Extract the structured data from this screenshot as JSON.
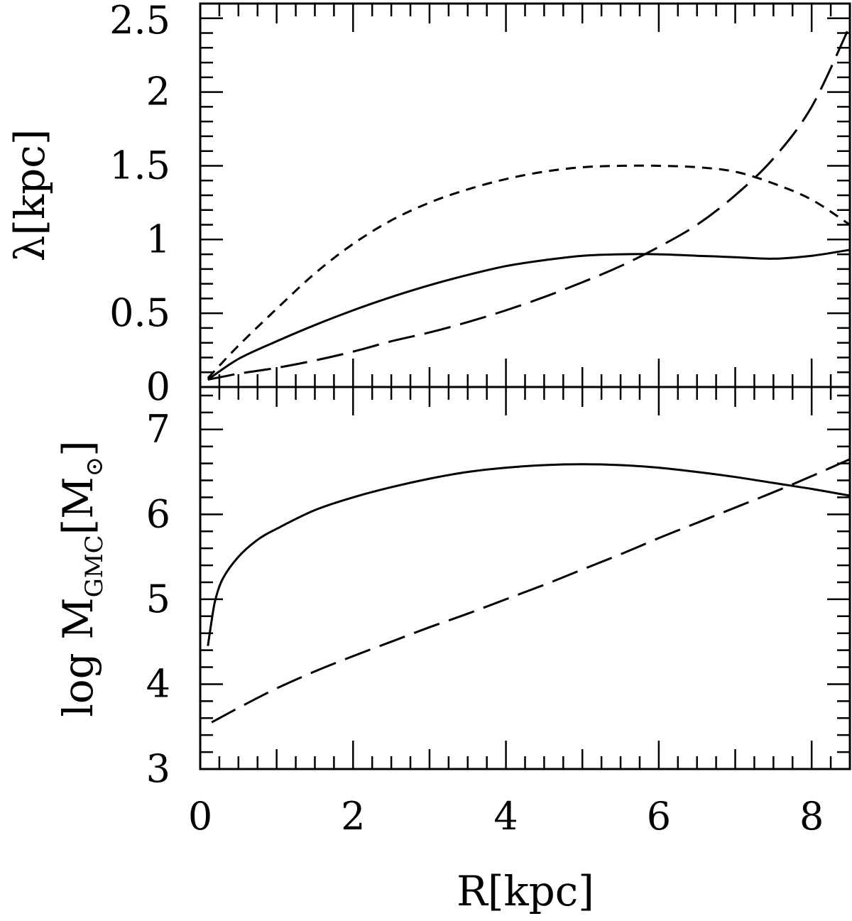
{
  "chart_data": [
    {
      "type": "line",
      "panel": "top",
      "ylabel": "λ[kpc]",
      "xlim": [
        0,
        8.5
      ],
      "ylim": [
        0,
        2.6
      ],
      "y_ticks": [
        0,
        0.5,
        1,
        1.5,
        2,
        2.5
      ],
      "y_tick_labels": [
        "0",
        "0.5",
        "1",
        "1.5",
        "2",
        "2.5"
      ],
      "grid": false,
      "series": [
        {
          "style": "solid",
          "x": [
            0.1,
            0.5,
            1,
            1.5,
            2,
            2.5,
            3,
            3.5,
            4,
            4.5,
            5,
            5.5,
            6,
            6.5,
            7,
            7.5,
            8,
            8.5
          ],
          "y": [
            0.05,
            0.19,
            0.31,
            0.42,
            0.52,
            0.61,
            0.69,
            0.76,
            0.82,
            0.86,
            0.89,
            0.9,
            0.9,
            0.89,
            0.88,
            0.87,
            0.89,
            0.93
          ]
        },
        {
          "style": "short-dash",
          "x": [
            0.1,
            0.5,
            1,
            1.5,
            2,
            2.5,
            3,
            3.5,
            4,
            4.5,
            5,
            5.5,
            6,
            6.5,
            7,
            7.5,
            8,
            8.5
          ],
          "y": [
            0.06,
            0.28,
            0.53,
            0.77,
            0.97,
            1.13,
            1.25,
            1.34,
            1.41,
            1.46,
            1.49,
            1.5,
            1.5,
            1.49,
            1.46,
            1.38,
            1.27,
            1.1
          ]
        },
        {
          "style": "long-dash",
          "x": [
            0.1,
            0.5,
            1,
            1.5,
            2,
            2.5,
            3,
            3.5,
            4,
            4.5,
            5,
            5.5,
            6,
            6.5,
            7,
            7.5,
            8,
            8.5
          ],
          "y": [
            0.05,
            0.09,
            0.13,
            0.18,
            0.24,
            0.31,
            0.37,
            0.44,
            0.52,
            0.61,
            0.71,
            0.82,
            0.95,
            1.1,
            1.3,
            1.55,
            1.9,
            2.45
          ]
        }
      ]
    },
    {
      "type": "line",
      "panel": "bottom",
      "ylabel": "log M",
      "ylabel_subscript": "GMC",
      "ylabel_unit": "[M",
      "ylabel_unit_subscript": "⊙",
      "ylabel_unit_close": "]",
      "xlabel": "R[kpc]",
      "xlim": [
        0,
        8.5
      ],
      "ylim": [
        3,
        7.5
      ],
      "y_ticks": [
        3,
        4,
        5,
        6,
        7
      ],
      "y_tick_labels": [
        "3",
        "4",
        "5",
        "6",
        "7"
      ],
      "x_ticks": [
        0,
        2,
        4,
        6,
        8
      ],
      "x_tick_labels": [
        "0",
        "2",
        "4",
        "6",
        "8"
      ],
      "grid": false,
      "series": [
        {
          "style": "solid",
          "x": [
            0.1,
            0.15,
            0.2,
            0.3,
            0.5,
            0.75,
            1,
            1.5,
            2,
            2.5,
            3,
            3.5,
            4,
            4.5,
            5,
            5.5,
            6,
            6.5,
            7,
            7.5,
            8,
            8.5
          ],
          "y": [
            4.45,
            4.75,
            5.0,
            5.25,
            5.5,
            5.7,
            5.83,
            6.05,
            6.2,
            6.32,
            6.42,
            6.5,
            6.55,
            6.58,
            6.59,
            6.58,
            6.55,
            6.5,
            6.44,
            6.37,
            6.3,
            6.22
          ]
        },
        {
          "style": "long-dash",
          "x": [
            0.15,
            0.5,
            1,
            1.5,
            2,
            2.5,
            3,
            3.5,
            4,
            4.5,
            5,
            5.5,
            6,
            6.5,
            7,
            7.5,
            8,
            8.5
          ],
          "y": [
            3.55,
            3.72,
            3.95,
            4.15,
            4.33,
            4.5,
            4.67,
            4.83,
            5.0,
            5.17,
            5.35,
            5.53,
            5.72,
            5.9,
            6.08,
            6.26,
            6.45,
            6.65
          ]
        }
      ]
    }
  ]
}
